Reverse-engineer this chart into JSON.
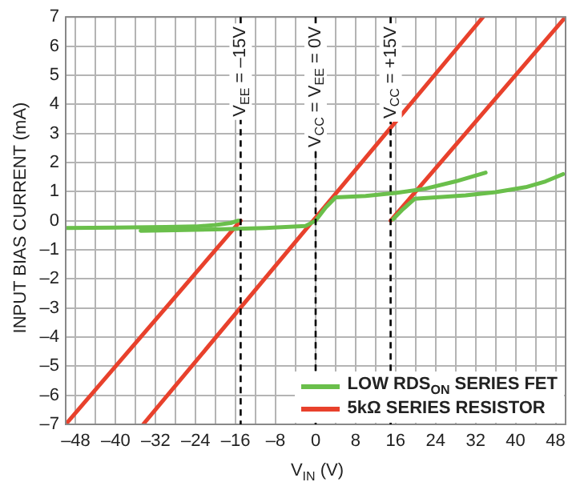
{
  "chart_data": {
    "type": "line",
    "xlabel": "V$_{IN}$ (V)",
    "ylabel": "INPUT BIAS CURRENT (mA)",
    "xlim": [
      -50,
      50
    ],
    "ylim": [
      -7,
      7
    ],
    "xticks": [
      {
        "value": -48,
        "label": "–48"
      },
      {
        "value": -44,
        "label": null
      },
      {
        "value": -40,
        "label": "–40"
      },
      {
        "value": -36,
        "label": null
      },
      {
        "value": -32,
        "label": "–32"
      },
      {
        "value": -28,
        "label": null
      },
      {
        "value": -24,
        "label": "–24"
      },
      {
        "value": -20,
        "label": null
      },
      {
        "value": -16,
        "label": "–16"
      },
      {
        "value": -12,
        "label": null
      },
      {
        "value": -8,
        "label": "–8"
      },
      {
        "value": -4,
        "label": null
      },
      0,
      {
        "value": 4,
        "label": null
      },
      8,
      {
        "value": 12,
        "label": null
      },
      16,
      {
        "value": 20,
        "label": null
      },
      24,
      {
        "value": 28,
        "label": null
      },
      32,
      {
        "value": 36,
        "label": null
      },
      40,
      {
        "value": 44,
        "label": null
      },
      48
    ],
    "yticks": [
      {
        "value": -7,
        "label": "–7"
      },
      {
        "value": -6,
        "label": "–6"
      },
      {
        "value": -5,
        "label": "–5"
      },
      {
        "value": -4,
        "label": "–4"
      },
      {
        "value": -3,
        "label": "–3"
      },
      {
        "value": -2,
        "label": "–2"
      },
      {
        "value": -1,
        "label": "–1"
      },
      0,
      1,
      2,
      3,
      4,
      5,
      6,
      7
    ],
    "grid": true,
    "legend": "bottom right",
    "marker": "none",
    "line_style": "solid",
    "series": [
      {
        "name": "LOW RDS$_{ON}$ SERIES FET",
        "color": "#6abf4b",
        "x": [
          -35,
          -28,
          -20,
          -10,
          -2,
          0,
          2,
          4,
          10,
          16,
          22,
          28,
          34
        ],
        "values": [
          -0.35,
          -0.33,
          -0.3,
          -0.25,
          -0.18,
          0,
          0.45,
          0.8,
          0.85,
          0.95,
          1.1,
          1.35,
          1.65
        ]
      },
      {
        "color": "#6abf4b",
        "x": [
          -50,
          -40,
          -30,
          -24,
          -20,
          -17,
          -15.5
        ],
        "values": [
          -0.25,
          -0.24,
          -0.22,
          -0.2,
          -0.15,
          -0.08,
          0
        ]
      },
      {
        "color": "#6abf4b",
        "x": [
          15.5,
          17.5,
          19.8,
          24,
          30,
          36,
          42,
          46,
          49.5
        ],
        "values": [
          0.05,
          0.4,
          0.75,
          0.8,
          0.87,
          0.98,
          1.15,
          1.35,
          1.6
        ]
      },
      {
        "name": "5kΩ SERIES RESISTOR",
        "color": "#e8412c",
        "x": [
          -34.5,
          33.5
        ],
        "values": [
          -7,
          7
        ]
      },
      {
        "color": "#e8412c",
        "x": [
          -50,
          -15
        ],
        "values": [
          -7,
          0
        ]
      },
      {
        "color": "#e8412c",
        "x": [
          15,
          50
        ],
        "values": [
          0,
          7
        ]
      }
    ],
    "ref_lines": [
      {
        "axis": "x",
        "value": -15,
        "label": "V$_{EE}$ = –15V",
        "color": "#000000",
        "line_style": "dashed"
      },
      {
        "axis": "x",
        "value": 0,
        "label": "V$_{CC}$ = V$_{EE}$ = 0V",
        "color": "#000000",
        "line_style": "dashed"
      },
      {
        "axis": "x",
        "value": 15,
        "label": "V$_{CC}$ = +15V",
        "color": "#000000",
        "line_style": "dashed"
      }
    ]
  }
}
